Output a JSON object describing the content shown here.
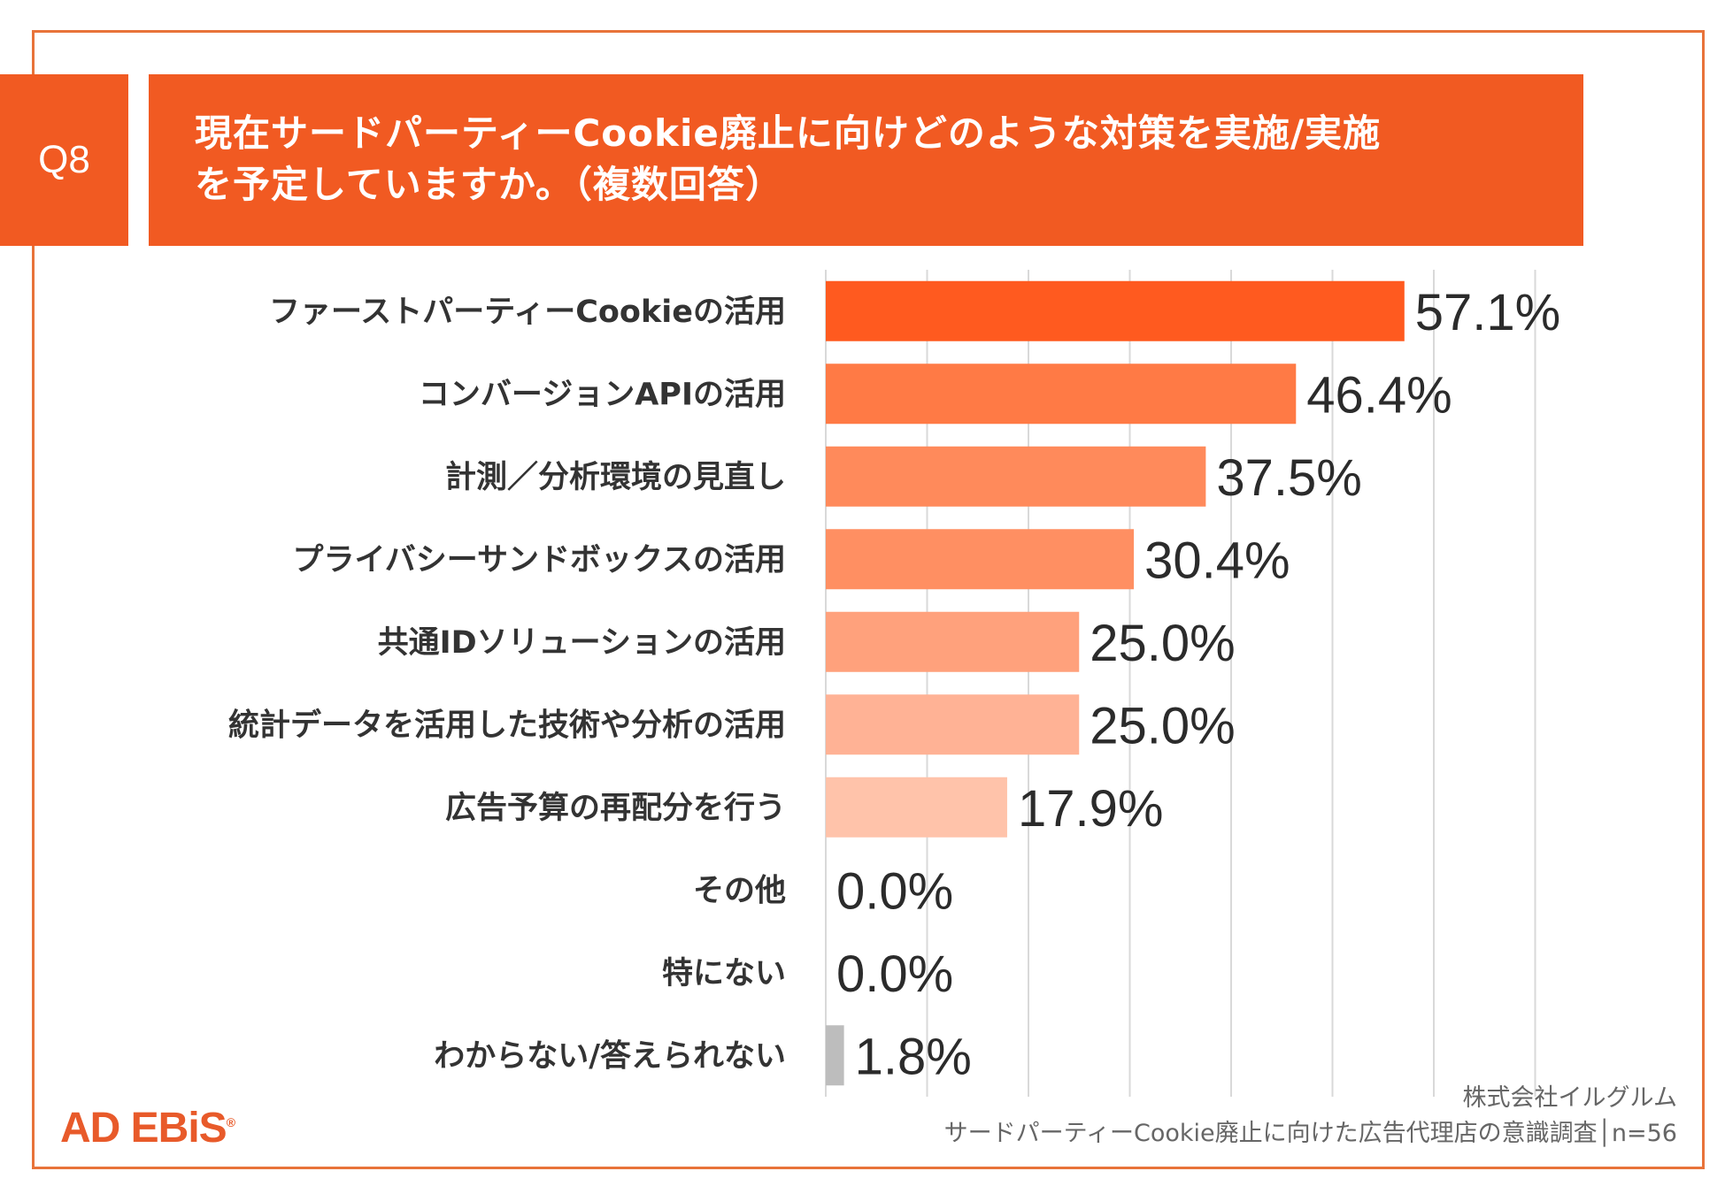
{
  "question": {
    "number": "Q8",
    "title_line1": "現在サードパーティーCookie廃止に向けどのような対策を実施/実施",
    "title_line2": "を予定していますか。（複数回答）"
  },
  "chart_data": {
    "type": "bar",
    "orientation": "horizontal",
    "categories": [
      "ファーストパーティーCookieの活用",
      "コンバージョンAPIの活用",
      "計測／分析環境の見直し",
      "プライバシーサンドボックスの活用",
      "共通IDソリューションの活用",
      "統計データを活用した技術や分析の活用",
      "広告予算の再配分を行う",
      "その他",
      "特にない",
      "わからない/答えられない"
    ],
    "values": [
      57.1,
      46.4,
      37.5,
      30.4,
      25.0,
      25.0,
      17.9,
      0.0,
      0.0,
      1.8
    ],
    "value_labels": [
      "57.1%",
      "46.4%",
      "37.5%",
      "30.4%",
      "25.0%",
      "25.0%",
      "17.9%",
      "0.0%",
      "0.0%",
      "1.8%"
    ],
    "colors": [
      "#FF5A1F",
      "#FF7A45",
      "#FF8A5B",
      "#FF8F62",
      "#FFA17C",
      "#FFB295",
      "#FFC3AA",
      "#FFC3AA",
      "#FFC3AA",
      "#BDBDBD"
    ],
    "xlim": [
      0,
      70
    ],
    "grid": true,
    "title": "",
    "xlabel": "",
    "ylabel": ""
  },
  "footer": {
    "logo": "AD EBiS",
    "logo_mark": "®",
    "company": "株式会社イルグルム",
    "survey": "サードパーティーCookie廃止に向けた広告代理店の意識調査│n=56"
  }
}
